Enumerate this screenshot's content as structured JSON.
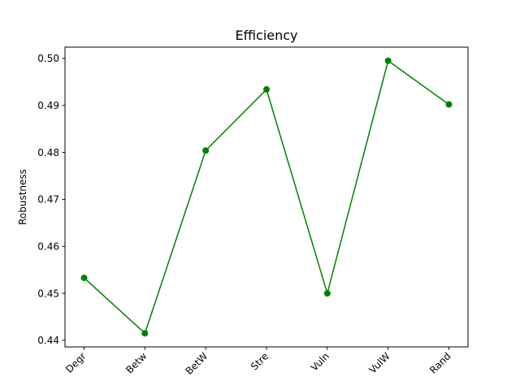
{
  "chart_data": {
    "type": "line",
    "title": "Efficiency",
    "xlabel": "",
    "ylabel": "Robustness",
    "categories": [
      "Degr",
      "Betw",
      "BetW",
      "Stre",
      "Vuln",
      "VulW",
      "Rand"
    ],
    "series": [
      {
        "values": [
          0.4533,
          0.4415,
          0.4804,
          0.4934,
          0.45,
          0.4995,
          0.4902
        ],
        "color": "#008000",
        "marker": "circle"
      }
    ],
    "ylim": [
      0.4386,
      0.5024
    ],
    "yticks": [
      0.44,
      0.45,
      0.46,
      0.47,
      0.48,
      0.49,
      0.5
    ],
    "ytick_labels": [
      "0.44",
      "0.45",
      "0.46",
      "0.47",
      "0.48",
      "0.49",
      "0.50"
    ],
    "xtick_rotation_deg": 45,
    "grid": false,
    "legend": "none"
  }
}
